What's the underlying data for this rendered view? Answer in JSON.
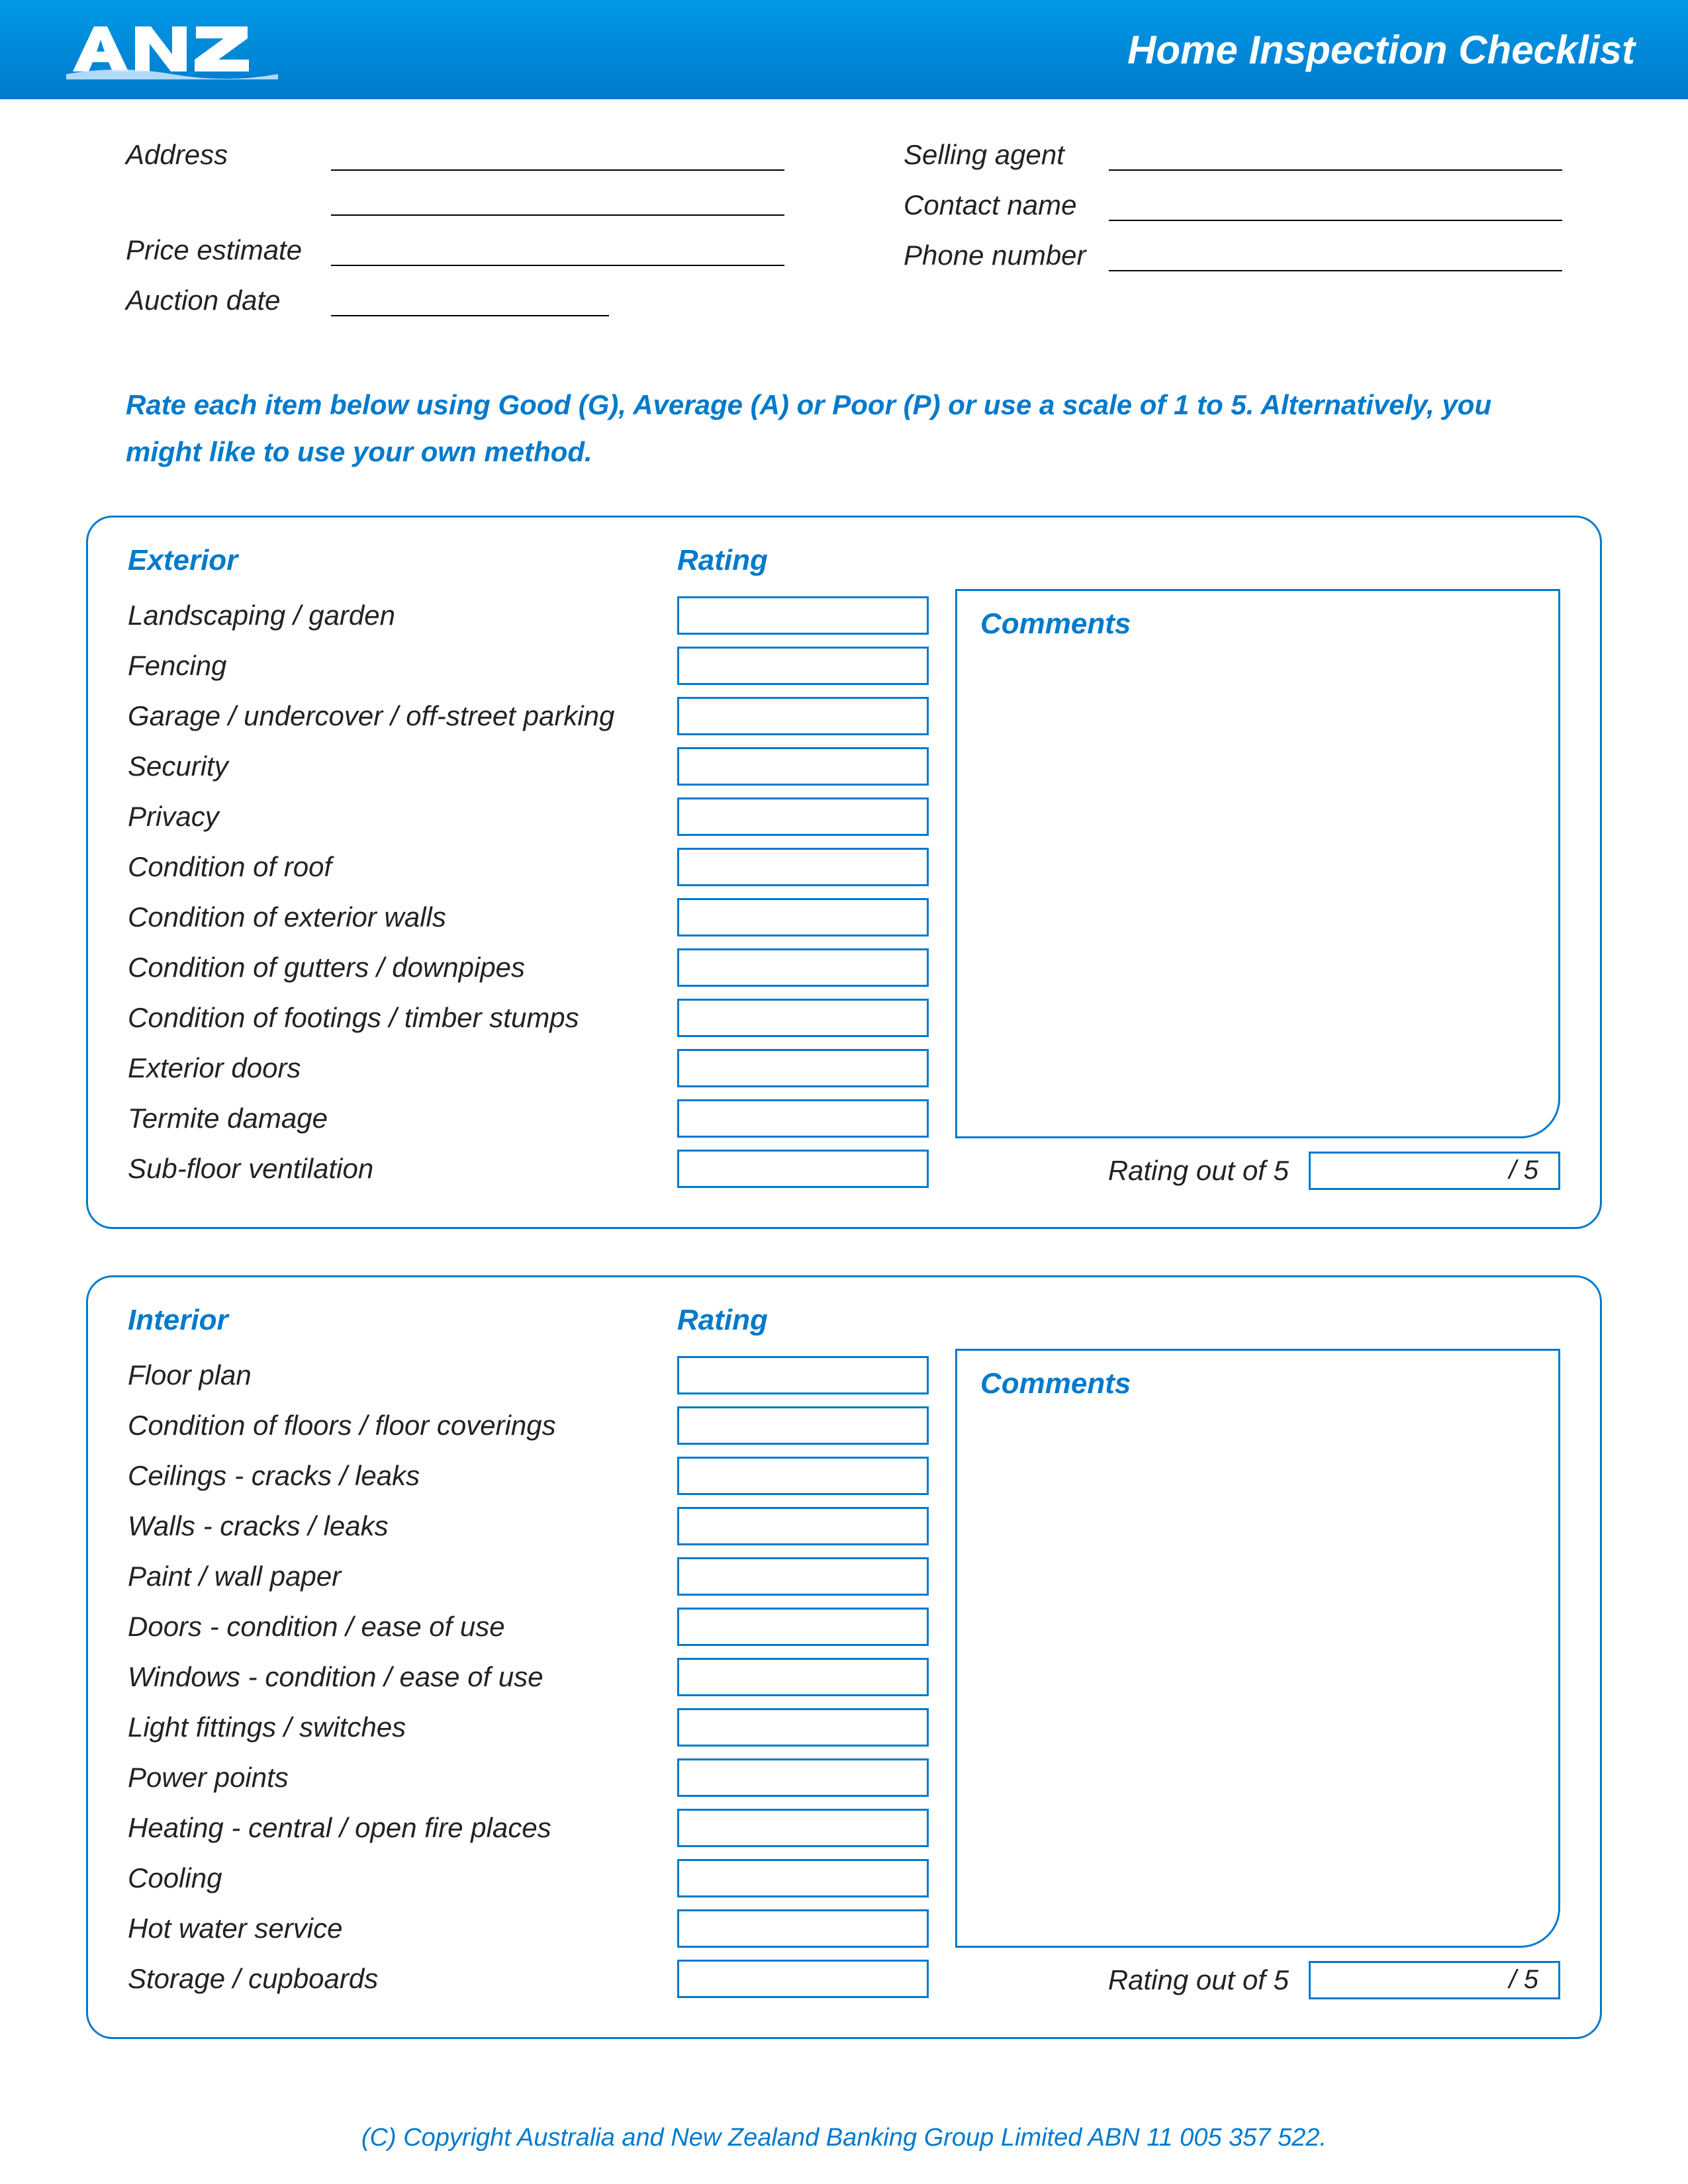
{
  "header": {
    "logo_text": "ANZ",
    "title": "Home Inspection Checklist"
  },
  "colors": {
    "brand": "#007acc",
    "header_grad_top": "#0099e6",
    "header_grad_bottom": "#007acc",
    "text": "#222222",
    "background": "#ffffff"
  },
  "info_left": [
    {
      "label": "Address",
      "lines": 2,
      "short": false
    },
    {
      "label": "Price estimate",
      "lines": 1,
      "short": false
    },
    {
      "label": "Auction date",
      "lines": 1,
      "short": true
    }
  ],
  "info_right": [
    {
      "label": "Selling agent"
    },
    {
      "label": "Contact name"
    },
    {
      "label": "Phone number"
    }
  ],
  "instructions": "Rate each item below using Good (G), Average (A) or Poor (P) or use a scale of 1 to 5.  Alternatively, you might like to use your own method.",
  "sections": [
    {
      "title": "Exterior",
      "rating_header": "Rating",
      "items": [
        "Landscaping / garden",
        "Fencing",
        "Garage / undercover / off-street parking",
        "Security",
        "Privacy",
        "Condition of roof",
        "Condition of exterior walls",
        "Condition of gutters / downpipes",
        "Condition of footings / timber stumps",
        "Exterior doors",
        "Termite damage",
        "Sub-floor ventilation"
      ],
      "comments_label": "Comments",
      "comments_height": 830,
      "rating_out_label": "Rating out of 5",
      "rating_out_suffix": "/ 5"
    },
    {
      "title": "Interior",
      "rating_header": "Rating",
      "items": [
        "Floor plan",
        "Condition of floors / floor coverings",
        "Ceilings - cracks / leaks",
        "Walls - cracks / leaks",
        "Paint / wall paper",
        "Doors - condition / ease of use",
        "Windows - condition / ease of use",
        "Light fittings / switches",
        "Power points",
        "Heating - central / open fire places",
        "Cooling",
        "Hot water service",
        "Storage / cupboards"
      ],
      "comments_label": "Comments",
      "comments_height": 905,
      "rating_out_label": "Rating out of 5",
      "rating_out_suffix": "/ 5"
    }
  ],
  "footer": "(C) Copyright Australia and New Zealand Banking Group Limited ABN 11 005 357 522."
}
